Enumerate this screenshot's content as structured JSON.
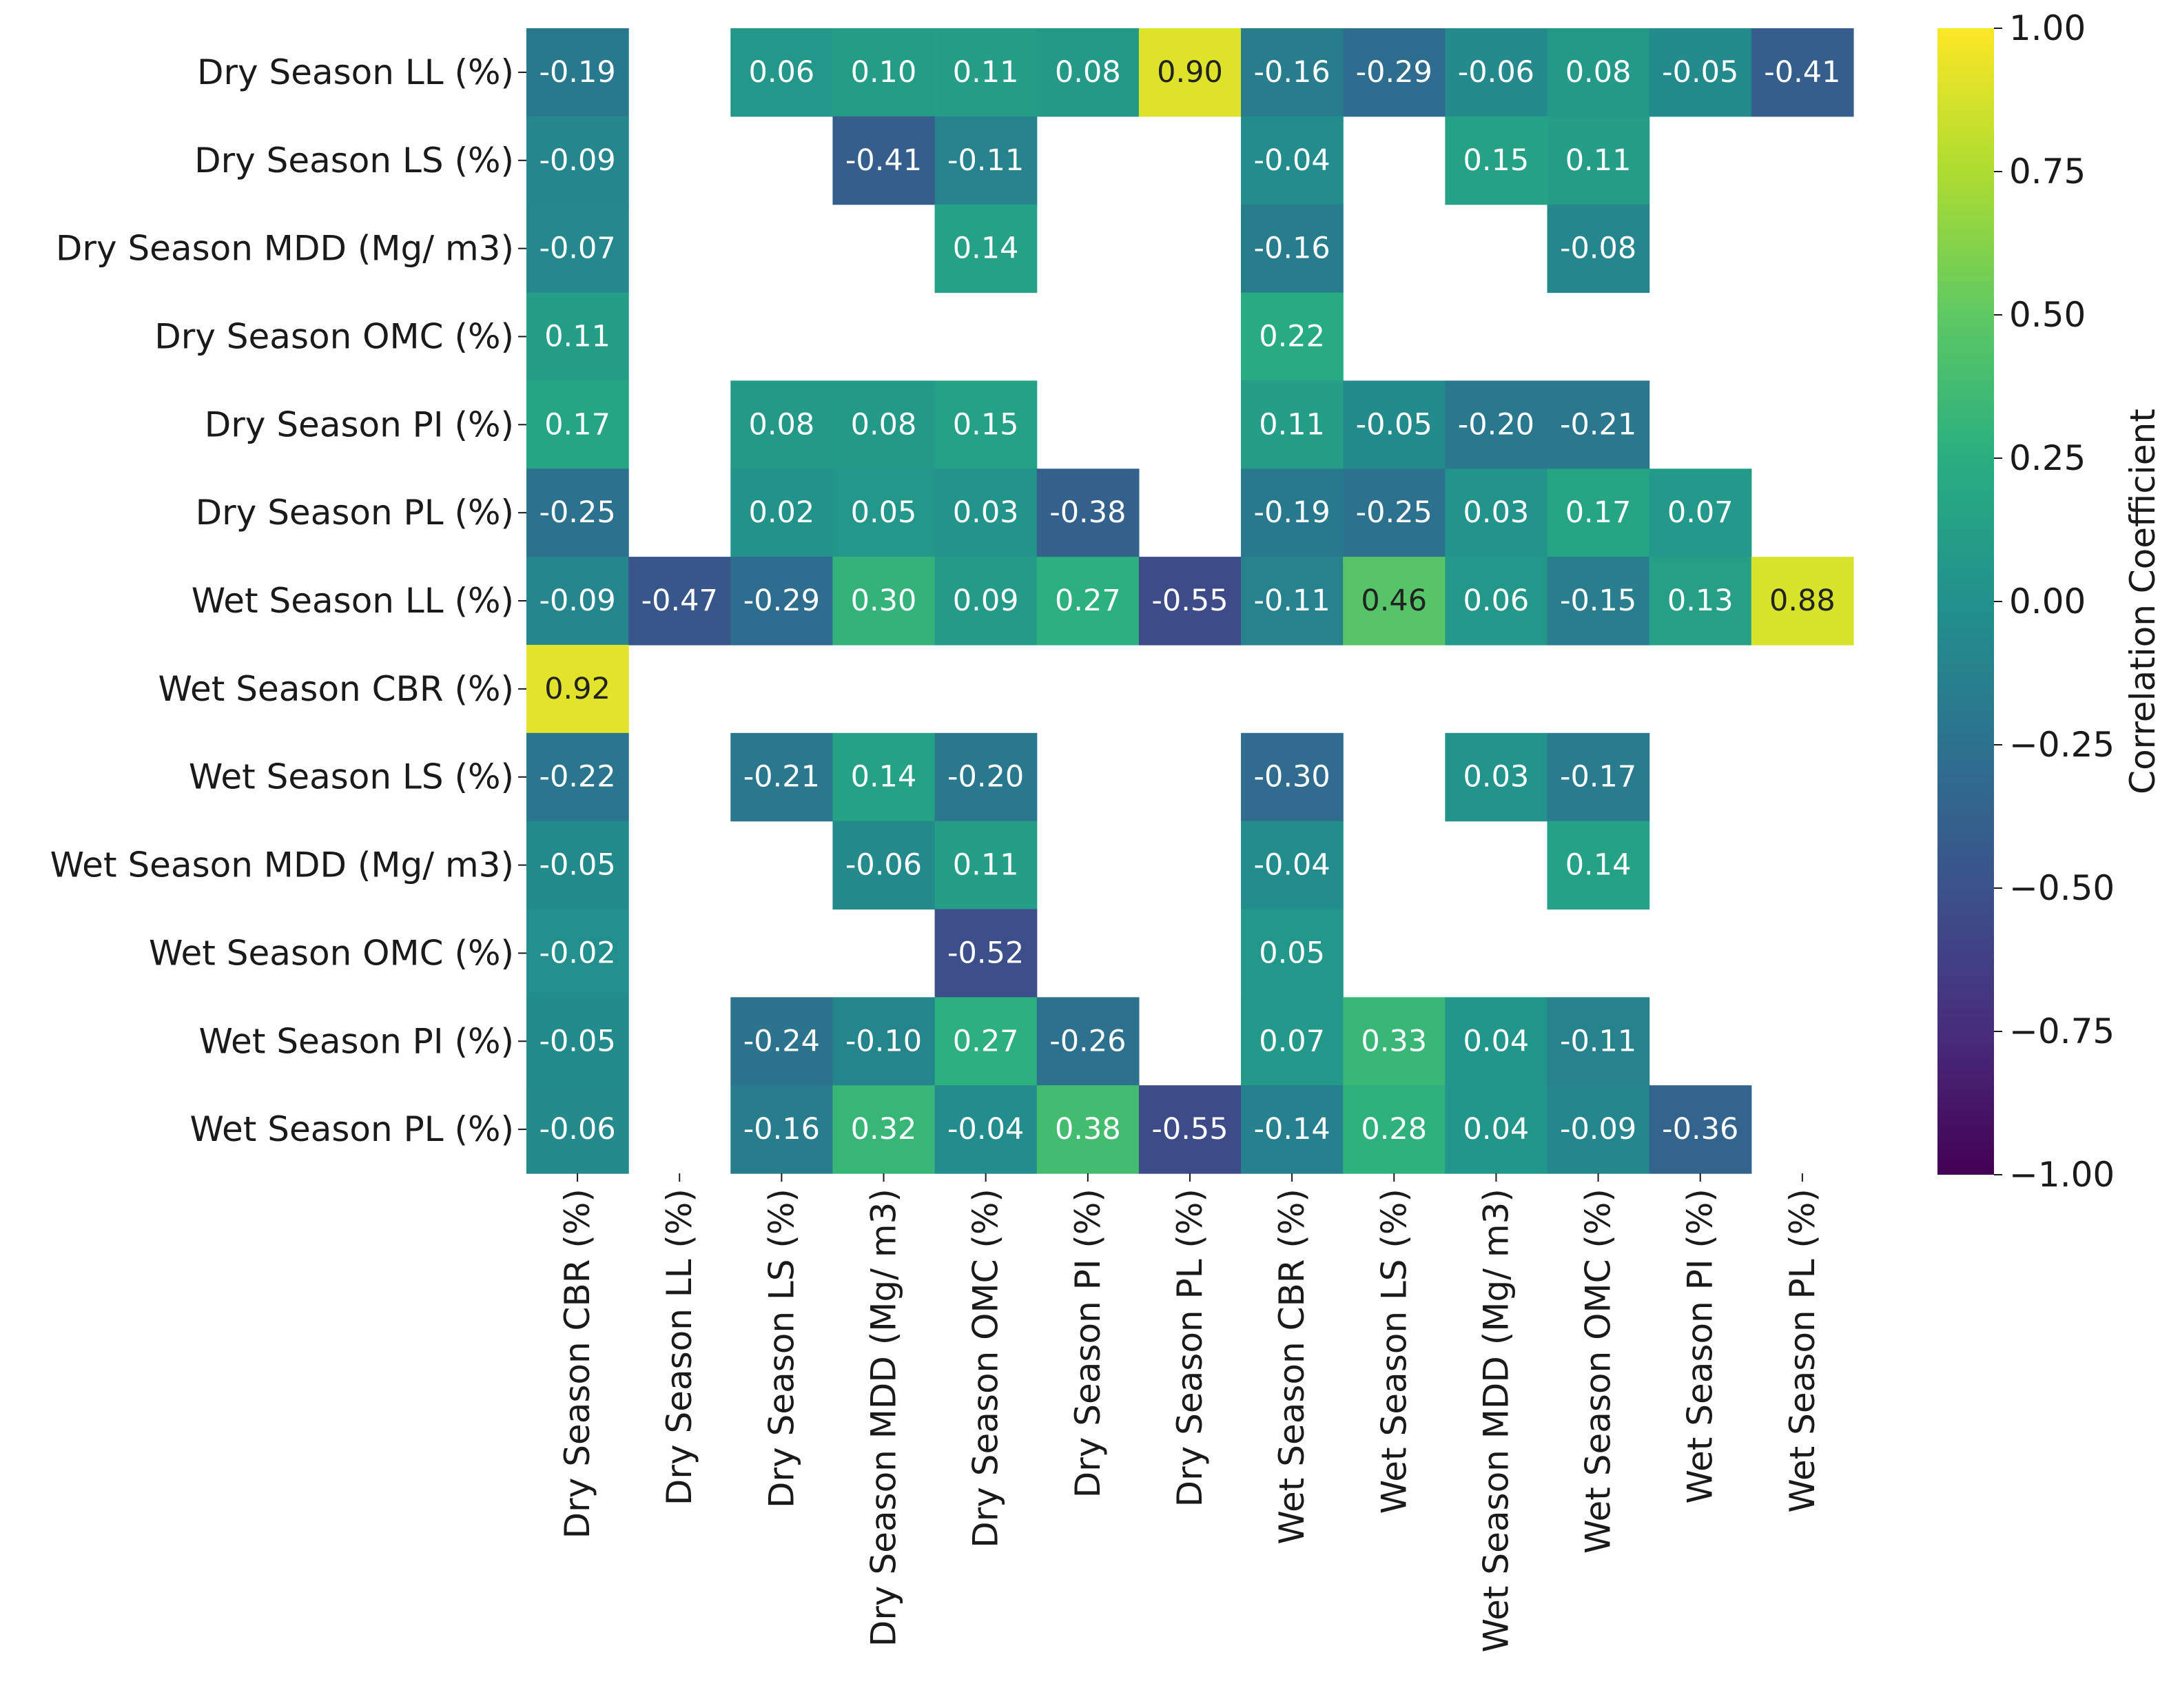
{
  "chart_data": {
    "type": "heatmap",
    "title": "",
    "colormap": "viridis",
    "colorbar": {
      "label": "Correlation Coefficient",
      "range": [
        -1.0,
        1.0
      ],
      "ticks": [
        1.0,
        0.75,
        0.5,
        0.25,
        0.0,
        -0.25,
        -0.5,
        -0.75,
        -1.0
      ],
      "tick_labels": [
        "1.00",
        "0.75",
        "0.50",
        "0.25",
        "0.00",
        "−0.25",
        "−0.50",
        "−0.75",
        "−1.00"
      ]
    },
    "rows": [
      "Dry Season LL (%)",
      "Dry Season LS (%)",
      "Dry Season MDD (Mg/ m3)",
      "Dry Season OMC (%)",
      "Dry Season PI (%)",
      "Dry Season PL (%)",
      "Wet  Season LL (%)",
      "Wet Season CBR (%)",
      "Wet Season LS (%)",
      "Wet Season MDD (Mg/ m3)",
      "Wet Season OMC (%)",
      "Wet Season PI (%)",
      "Wet Season PL (%)"
    ],
    "columns": [
      "Dry Season CBR (%)",
      "Dry Season LL (%)",
      "Dry Season LS (%)",
      "Dry Season MDD (Mg/ m3)",
      "Dry Season OMC (%)",
      "Dry Season PI (%)",
      "Dry Season PL (%)",
      "Wet Season CBR (%)",
      "Wet Season LS (%)",
      "Wet Season MDD (Mg/ m3)",
      "Wet Season OMC (%)",
      "Wet Season PI (%)",
      "Wet Season PL (%)"
    ],
    "values": [
      [
        -0.19,
        null,
        0.06,
        0.1,
        0.11,
        0.08,
        0.9,
        -0.16,
        -0.29,
        -0.06,
        0.08,
        -0.05,
        -0.41
      ],
      [
        -0.09,
        null,
        null,
        -0.41,
        -0.11,
        null,
        null,
        -0.04,
        null,
        0.15,
        0.11,
        null,
        null
      ],
      [
        -0.07,
        null,
        null,
        null,
        0.14,
        null,
        null,
        -0.16,
        null,
        null,
        -0.08,
        null,
        null
      ],
      [
        0.11,
        null,
        null,
        null,
        null,
        null,
        null,
        0.22,
        null,
        null,
        null,
        null,
        null
      ],
      [
        0.17,
        null,
        0.08,
        0.08,
        0.15,
        null,
        null,
        0.11,
        -0.05,
        -0.2,
        -0.21,
        null,
        null
      ],
      [
        -0.25,
        null,
        0.02,
        0.05,
        0.03,
        -0.38,
        null,
        -0.19,
        -0.25,
        0.03,
        0.17,
        0.07,
        null
      ],
      [
        -0.09,
        -0.47,
        -0.29,
        0.3,
        0.09,
        0.27,
        -0.55,
        -0.11,
        0.46,
        0.06,
        -0.15,
        0.13,
        0.88
      ],
      [
        0.92,
        null,
        null,
        null,
        null,
        null,
        null,
        null,
        null,
        null,
        null,
        null,
        null
      ],
      [
        -0.22,
        null,
        -0.21,
        0.14,
        -0.2,
        null,
        null,
        -0.3,
        null,
        0.03,
        -0.17,
        null,
        null
      ],
      [
        -0.05,
        null,
        null,
        -0.06,
        0.11,
        null,
        null,
        -0.04,
        null,
        null,
        0.14,
        null,
        null
      ],
      [
        -0.02,
        null,
        null,
        null,
        -0.52,
        null,
        null,
        0.05,
        null,
        null,
        null,
        null,
        null
      ],
      [
        -0.05,
        null,
        -0.24,
        -0.1,
        0.27,
        -0.26,
        null,
        0.07,
        0.33,
        0.04,
        -0.11,
        null,
        null
      ],
      [
        -0.06,
        null,
        -0.16,
        0.32,
        -0.04,
        0.38,
        -0.55,
        -0.14,
        0.28,
        0.04,
        -0.09,
        -0.36,
        null
      ]
    ],
    "value_labels": [
      [
        "-0.19",
        null,
        "0.06",
        "0.10",
        "0.11",
        "0.08",
        "0.90",
        "-0.16",
        "-0.29",
        "-0.06",
        "0.08",
        "-0.05",
        "-0.41"
      ],
      [
        "-0.09",
        null,
        null,
        "-0.41",
        "-0.11",
        null,
        null,
        "-0.04",
        null,
        "0.15",
        "0.11",
        null,
        null
      ],
      [
        "-0.07",
        null,
        null,
        null,
        "0.14",
        null,
        null,
        "-0.16",
        null,
        null,
        "-0.08",
        null,
        null
      ],
      [
        "0.11",
        null,
        null,
        null,
        null,
        null,
        null,
        "0.22",
        null,
        null,
        null,
        null,
        null
      ],
      [
        "0.17",
        null,
        "0.08",
        "0.08",
        "0.15",
        null,
        null,
        "0.11",
        "-0.05",
        "-0.20",
        "-0.21",
        null,
        null
      ],
      [
        "-0.25",
        null,
        "0.02",
        "0.05",
        "0.03",
        "-0.38",
        null,
        "-0.19",
        "-0.25",
        "0.03",
        "0.17",
        "0.07",
        null
      ],
      [
        "-0.09",
        "-0.47",
        "-0.29",
        "0.30",
        "0.09",
        "0.27",
        "-0.55",
        "-0.11",
        "0.46",
        "0.06",
        "-0.15",
        "0.13",
        "0.88"
      ],
      [
        "0.92",
        null,
        null,
        null,
        null,
        null,
        null,
        null,
        null,
        null,
        null,
        null,
        null
      ],
      [
        "-0.22",
        null,
        "-0.21",
        "0.14",
        "-0.20",
        null,
        null,
        "-0.30",
        null,
        "0.03",
        "-0.17",
        null,
        null
      ],
      [
        "-0.05",
        null,
        null,
        "-0.06",
        "0.11",
        null,
        null,
        "-0.04",
        null,
        null,
        "0.14",
        null,
        null
      ],
      [
        "-0.02",
        null,
        null,
        null,
        "-0.52",
        null,
        null,
        "0.05",
        null,
        null,
        null,
        null,
        null
      ],
      [
        "-0.05",
        null,
        "-0.24",
        "-0.10",
        "0.27",
        "-0.26",
        null,
        "0.07",
        "0.33",
        "0.04",
        "-0.11",
        null,
        null
      ],
      [
        "-0.06",
        null,
        "-0.16",
        "0.32",
        "-0.04",
        "0.38",
        "-0.55",
        "-0.14",
        "0.28",
        "0.04",
        "-0.09",
        "-0.36",
        null
      ]
    ]
  }
}
